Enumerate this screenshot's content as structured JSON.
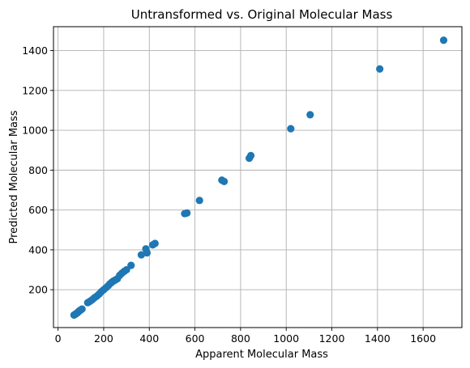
{
  "chart_data": {
    "type": "scatter",
    "title": "Untransformed vs. Original Molecular Mass",
    "xlabel": "Apparent Molecular Mass",
    "ylabel": "Predicted Molecular Mass",
    "xlim": [
      -20,
      1770
    ],
    "ylim": [
      10,
      1520
    ],
    "xticks": [
      0,
      200,
      400,
      600,
      800,
      1000,
      1200,
      1400,
      1600
    ],
    "yticks": [
      200,
      400,
      600,
      800,
      1000,
      1200,
      1400
    ],
    "xtick_labels": [
      "0",
      "200",
      "400",
      "600",
      "800",
      "1000",
      "1200",
      "1400",
      "1600"
    ],
    "ytick_labels": [
      "200",
      "400",
      "600",
      "800",
      "1000",
      "1200",
      "1400"
    ],
    "grid": true,
    "marker_color": "#1f77b4",
    "series": [
      {
        "points": [
          [
            70,
            73
          ],
          [
            75,
            76
          ],
          [
            78,
            79
          ],
          [
            82,
            82
          ],
          [
            85,
            84
          ],
          [
            88,
            88
          ],
          [
            92,
            92
          ],
          [
            96,
            96
          ],
          [
            100,
            99
          ],
          [
            105,
            103
          ],
          [
            130,
            135
          ],
          [
            140,
            142
          ],
          [
            150,
            150
          ],
          [
            160,
            160
          ],
          [
            170,
            168
          ],
          [
            180,
            178
          ],
          [
            190,
            190
          ],
          [
            200,
            200
          ],
          [
            210,
            210
          ],
          [
            220,
            220
          ],
          [
            228,
            230
          ],
          [
            235,
            237
          ],
          [
            242,
            243
          ],
          [
            250,
            248
          ],
          [
            260,
            255
          ],
          [
            270,
            272
          ],
          [
            280,
            283
          ],
          [
            290,
            292
          ],
          [
            300,
            300
          ],
          [
            320,
            322
          ],
          [
            365,
            375
          ],
          [
            385,
            405
          ],
          [
            390,
            385
          ],
          [
            415,
            425
          ],
          [
            425,
            432
          ],
          [
            555,
            582
          ],
          [
            565,
            585
          ],
          [
            620,
            648
          ],
          [
            718,
            750
          ],
          [
            728,
            743
          ],
          [
            838,
            860
          ],
          [
            845,
            873
          ],
          [
            1020,
            1008
          ],
          [
            1105,
            1078
          ],
          [
            1410,
            1308
          ],
          [
            1690,
            1452
          ]
        ]
      }
    ]
  }
}
